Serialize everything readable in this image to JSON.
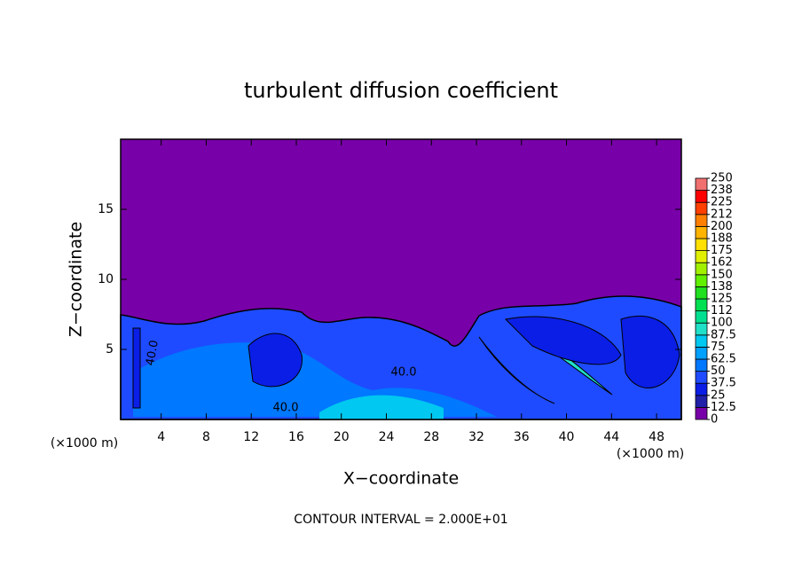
{
  "chart_data": {
    "type": "contour",
    "title": "turbulent diffusion coefficient",
    "xlabel": "X−coordinate",
    "ylabel": "Z−coordinate",
    "x_unit_left": "(×1000 m)",
    "x_unit_right": "(×1000 m)",
    "footnote": "CONTOUR INTERVAL = 2.000E+01",
    "contour_labels": [
      "40.0",
      "40.0",
      "40.0"
    ],
    "xlim": [
      0.4,
      50.2
    ],
    "xticks": [
      4,
      8,
      12,
      16,
      20,
      24,
      28,
      32,
      36,
      40,
      44,
      48
    ],
    "ylim": [
      0,
      20
    ],
    "yticks": [
      5,
      10,
      15
    ],
    "levels": [
      0,
      12.5,
      25,
      37.5,
      50,
      62.5,
      75,
      87.5,
      100,
      {
        "value": 112.5,
        "label": "112"
      },
      125,
      {
        "value": 137.5,
        "label": "138"
      },
      150,
      {
        "value": 162.5,
        "label": "162"
      },
      175,
      {
        "value": 187.5,
        "label": "188"
      },
      200,
      {
        "value": 212.5,
        "label": "212"
      },
      225,
      {
        "value": 237.5,
        "label": "238"
      },
      250
    ],
    "colors": [
      "#7800a8",
      "#2020a8",
      "#0a1ee6",
      "#1e4bff",
      "#0078ff",
      "#00a0ff",
      "#00c8f0",
      "#20e0c8",
      "#00e090",
      "#00e050",
      "#20e020",
      "#60f000",
      "#a0f000",
      "#e0f000",
      "#ffe000",
      "#ffb400",
      "#ff8000",
      "#ff4000",
      "#ff0000",
      "#f07070"
    ]
  }
}
